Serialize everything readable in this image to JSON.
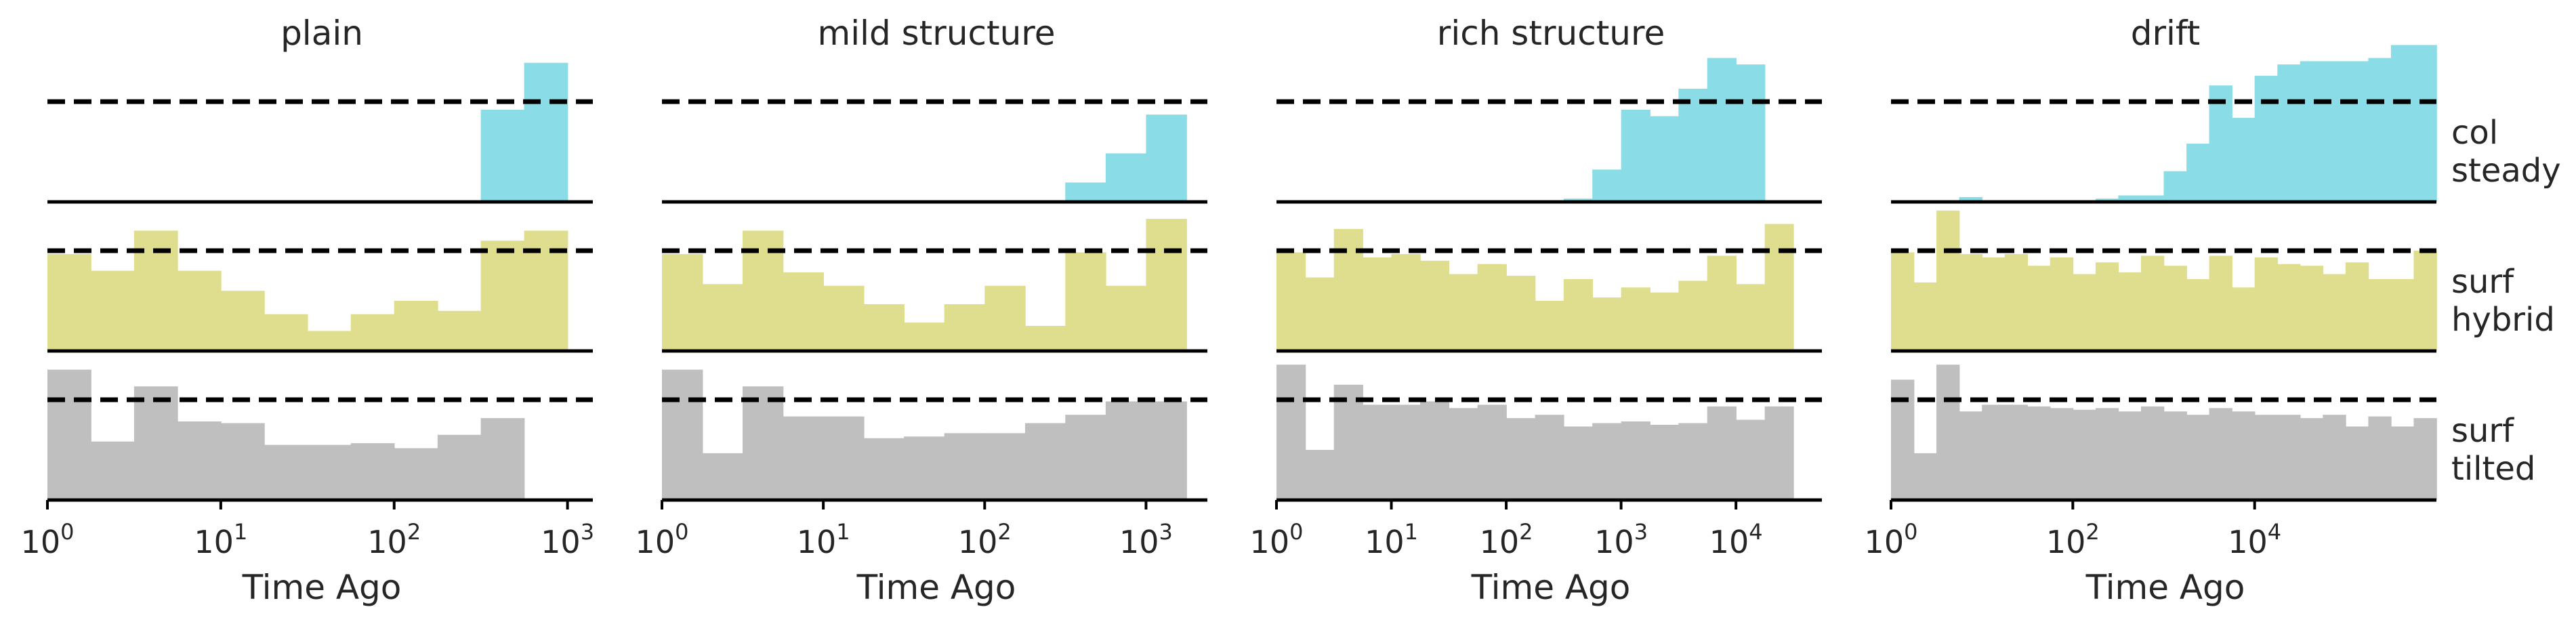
{
  "figure": {
    "columns": [
      "plain",
      "mild structure",
      "rich structure",
      "drift"
    ],
    "rows": [
      {
        "line1": "col",
        "line2": "steady"
      },
      {
        "line1": "surf",
        "line2": "hybrid"
      },
      {
        "line1": "surf",
        "line2": "tilted"
      }
    ],
    "xlabel": "Time Ago",
    "colors": {
      "col": "#8adde6",
      "hybrid": "#dede8e",
      "tilted": "#bfbfbf",
      "dashed": "#000000",
      "axis": "#000000"
    }
  },
  "chart_data": [
    {
      "type": "bar",
      "panel": "plain",
      "row": "col steady",
      "title": "plain",
      "xlabel": "Time Ago",
      "xscale": "log",
      "xlim": [
        1,
        1400
      ],
      "xticks": [
        {
          "base": "10",
          "exp": "0"
        },
        {
          "base": "10",
          "exp": "1"
        },
        {
          "base": "10",
          "exp": "2"
        },
        {
          "base": "10",
          "exp": "3"
        }
      ],
      "bins": [
        [
          316,
          562,
          0.57
        ],
        [
          562,
          1000,
          0.86
        ]
      ],
      "reference_line": 0.62
    },
    {
      "type": "bar",
      "panel": "plain",
      "row": "surf hybrid",
      "xscale": "log",
      "bins": [
        [
          1,
          1.78,
          0.58
        ],
        [
          1.78,
          3.16,
          0.48
        ],
        [
          3.16,
          5.62,
          0.72
        ],
        [
          5.62,
          10,
          0.48
        ],
        [
          10,
          17.8,
          0.36
        ],
        [
          17.8,
          31.6,
          0.22
        ],
        [
          31.6,
          56.2,
          0.12
        ],
        [
          56.2,
          100,
          0.22
        ],
        [
          100,
          178,
          0.3
        ],
        [
          178,
          316,
          0.24
        ],
        [
          316,
          562,
          0.66
        ],
        [
          562,
          1000,
          0.72
        ]
      ],
      "reference_line": 0.6
    },
    {
      "type": "bar",
      "panel": "plain",
      "row": "surf tilted",
      "xscale": "log",
      "bins": [
        [
          1,
          1.78,
          0.78
        ],
        [
          1.78,
          3.16,
          0.35
        ],
        [
          3.16,
          5.62,
          0.68
        ],
        [
          5.62,
          10,
          0.47
        ],
        [
          10,
          17.8,
          0.46
        ],
        [
          17.8,
          31.6,
          0.33
        ],
        [
          31.6,
          56.2,
          0.33
        ],
        [
          56.2,
          100,
          0.34
        ],
        [
          100,
          178,
          0.31
        ],
        [
          178,
          316,
          0.39
        ],
        [
          316,
          562,
          0.49
        ]
      ],
      "reference_line": 0.6
    },
    {
      "type": "bar",
      "panel": "mild structure",
      "row": "col steady",
      "title": "mild structure",
      "xlabel": "Time Ago",
      "xscale": "log",
      "xlim": [
        1,
        2400
      ],
      "xticks": [
        {
          "base": "10",
          "exp": "0"
        },
        {
          "base": "10",
          "exp": "1"
        },
        {
          "base": "10",
          "exp": "2"
        },
        {
          "base": "10",
          "exp": "3"
        }
      ],
      "bins": [
        [
          316,
          562,
          0.12
        ],
        [
          562,
          1000,
          0.3
        ],
        [
          1000,
          1780,
          0.54
        ]
      ],
      "reference_line": 0.62
    },
    {
      "type": "bar",
      "panel": "mild structure",
      "row": "surf hybrid",
      "xscale": "log",
      "bins": [
        [
          1,
          1.78,
          0.58
        ],
        [
          1.78,
          3.16,
          0.4
        ],
        [
          3.16,
          5.62,
          0.72
        ],
        [
          5.62,
          10,
          0.47
        ],
        [
          10,
          17.8,
          0.39
        ],
        [
          17.8,
          31.6,
          0.28
        ],
        [
          31.6,
          56.2,
          0.17
        ],
        [
          56.2,
          100,
          0.28
        ],
        [
          100,
          178,
          0.39
        ],
        [
          178,
          316,
          0.15
        ],
        [
          316,
          562,
          0.59
        ],
        [
          562,
          1000,
          0.39
        ],
        [
          1000,
          1780,
          0.79
        ]
      ],
      "reference_line": 0.6
    },
    {
      "type": "bar",
      "panel": "mild structure",
      "row": "surf tilted",
      "xscale": "log",
      "bins": [
        [
          1,
          1.78,
          0.78
        ],
        [
          1.78,
          3.16,
          0.28
        ],
        [
          3.16,
          5.62,
          0.68
        ],
        [
          5.62,
          10,
          0.5
        ],
        [
          10,
          17.8,
          0.5
        ],
        [
          17.8,
          31.6,
          0.37
        ],
        [
          31.6,
          56.2,
          0.38
        ],
        [
          56.2,
          100,
          0.4
        ],
        [
          100,
          178,
          0.4
        ],
        [
          178,
          316,
          0.46
        ],
        [
          316,
          562,
          0.51
        ],
        [
          562,
          1000,
          0.59
        ],
        [
          1000,
          1780,
          0.59
        ]
      ],
      "reference_line": 0.6
    },
    {
      "type": "bar",
      "panel": "rich structure",
      "row": "col steady",
      "title": "rich structure",
      "xlabel": "Time Ago",
      "xscale": "log",
      "xlim": [
        1,
        56000
      ],
      "xticks": [
        {
          "base": "10",
          "exp": "0"
        },
        {
          "base": "10",
          "exp": "1"
        },
        {
          "base": "10",
          "exp": "2"
        },
        {
          "base": "10",
          "exp": "3"
        },
        {
          "base": "10",
          "exp": "4"
        }
      ],
      "bins": [
        [
          316,
          562,
          0.02
        ],
        [
          562,
          1000,
          0.2
        ],
        [
          1000,
          1780,
          0.57
        ],
        [
          1780,
          3160,
          0.53
        ],
        [
          3160,
          5620,
          0.7
        ],
        [
          5620,
          10000,
          0.89
        ],
        [
          10000,
          17800,
          0.85
        ]
      ],
      "reference_line": 0.62
    },
    {
      "type": "bar",
      "panel": "rich structure",
      "row": "surf hybrid",
      "xscale": "log",
      "bins": [
        [
          1,
          1.78,
          0.59
        ],
        [
          1.78,
          3.16,
          0.44
        ],
        [
          3.16,
          5.62,
          0.73
        ],
        [
          5.62,
          10,
          0.56
        ],
        [
          10,
          17.8,
          0.58
        ],
        [
          17.8,
          31.6,
          0.54
        ],
        [
          31.6,
          56.2,
          0.46
        ],
        [
          56.2,
          100,
          0.52
        ],
        [
          100,
          178,
          0.45
        ],
        [
          178,
          316,
          0.3
        ],
        [
          316,
          562,
          0.43
        ],
        [
          562,
          1000,
          0.32
        ],
        [
          1000,
          1780,
          0.38
        ],
        [
          1780,
          3160,
          0.35
        ],
        [
          3160,
          5620,
          0.42
        ],
        [
          5620,
          10000,
          0.57
        ],
        [
          10000,
          17800,
          0.4
        ],
        [
          17800,
          31600,
          0.76
        ]
      ],
      "reference_line": 0.6
    },
    {
      "type": "bar",
      "panel": "rich structure",
      "row": "surf tilted",
      "xscale": "log",
      "bins": [
        [
          1,
          1.78,
          0.81
        ],
        [
          1.78,
          3.16,
          0.3
        ],
        [
          3.16,
          5.62,
          0.69
        ],
        [
          5.62,
          10,
          0.57
        ],
        [
          10,
          17.8,
          0.57
        ],
        [
          17.8,
          31.6,
          0.59
        ],
        [
          31.6,
          56.2,
          0.55
        ],
        [
          56.2,
          100,
          0.57
        ],
        [
          100,
          178,
          0.49
        ],
        [
          178,
          316,
          0.51
        ],
        [
          316,
          562,
          0.44
        ],
        [
          562,
          1000,
          0.46
        ],
        [
          1000,
          1780,
          0.47
        ],
        [
          1780,
          3160,
          0.45
        ],
        [
          3160,
          5620,
          0.46
        ],
        [
          5620,
          10000,
          0.56
        ],
        [
          10000,
          17800,
          0.48
        ],
        [
          17800,
          31600,
          0.56
        ]
      ],
      "reference_line": 0.6
    },
    {
      "type": "bar",
      "panel": "drift",
      "row": "col steady",
      "title": "drift",
      "xlabel": "Time Ago",
      "xscale": "log",
      "xlim": [
        1,
        1000000
      ],
      "xticks": [
        {
          "base": "10",
          "exp": "0"
        },
        {
          "base": "10",
          "exp": "2"
        },
        {
          "base": "10",
          "exp": "4"
        }
      ],
      "bins": [
        [
          1.78,
          3.16,
          0.01
        ],
        [
          5.62,
          10,
          0.03
        ],
        [
          10,
          17.8,
          0.01
        ],
        [
          178,
          316,
          0.02
        ],
        [
          316,
          562,
          0.04
        ],
        [
          562,
          1000,
          0.04
        ],
        [
          1000,
          1780,
          0.19
        ],
        [
          1780,
          3160,
          0.36
        ],
        [
          3160,
          5620,
          0.72
        ],
        [
          5620,
          10000,
          0.52
        ],
        [
          10000,
          17800,
          0.78
        ],
        [
          17800,
          31600,
          0.85
        ],
        [
          31600,
          56200,
          0.87
        ],
        [
          56200,
          100000,
          0.87
        ],
        [
          100000,
          178000,
          0.87
        ],
        [
          178000,
          316000,
          0.89
        ],
        [
          316000,
          562000,
          0.97
        ],
        [
          562000,
          1000000,
          0.97
        ]
      ],
      "reference_line": 0.62
    },
    {
      "type": "bar",
      "panel": "drift",
      "row": "surf hybrid",
      "xscale": "log",
      "bins": [
        [
          1,
          1.78,
          0.59
        ],
        [
          1.78,
          3.16,
          0.41
        ],
        [
          3.16,
          5.62,
          0.84
        ],
        [
          5.62,
          10,
          0.58
        ],
        [
          10,
          17.8,
          0.56
        ],
        [
          17.8,
          31.6,
          0.58
        ],
        [
          31.6,
          56.2,
          0.51
        ],
        [
          56.2,
          100,
          0.56
        ],
        [
          100,
          178,
          0.46
        ],
        [
          178,
          316,
          0.53
        ],
        [
          316,
          562,
          0.47
        ],
        [
          562,
          1000,
          0.57
        ],
        [
          1000,
          1780,
          0.51
        ],
        [
          1780,
          3160,
          0.43
        ],
        [
          3160,
          5620,
          0.57
        ],
        [
          5620,
          10000,
          0.38
        ],
        [
          10000,
          17800,
          0.56
        ],
        [
          17800,
          31600,
          0.52
        ],
        [
          31600,
          56200,
          0.51
        ],
        [
          56200,
          100000,
          0.46
        ],
        [
          100000,
          178000,
          0.53
        ],
        [
          178000,
          316000,
          0.43
        ],
        [
          316000,
          562000,
          0.43
        ],
        [
          562000,
          1000000,
          0.6
        ]
      ],
      "reference_line": 0.6
    },
    {
      "type": "bar",
      "panel": "drift",
      "row": "surf tilted",
      "xscale": "log",
      "bins": [
        [
          1,
          1.78,
          0.72
        ],
        [
          1.78,
          3.16,
          0.28
        ],
        [
          3.16,
          5.62,
          0.81
        ],
        [
          5.62,
          10,
          0.53
        ],
        [
          10,
          17.8,
          0.57
        ],
        [
          17.8,
          31.6,
          0.57
        ],
        [
          31.6,
          56.2,
          0.56
        ],
        [
          56.2,
          100,
          0.55
        ],
        [
          100,
          178,
          0.54
        ],
        [
          178,
          316,
          0.55
        ],
        [
          316,
          562,
          0.53
        ],
        [
          562,
          1000,
          0.56
        ],
        [
          1000,
          1780,
          0.53
        ],
        [
          1780,
          3160,
          0.51
        ],
        [
          3160,
          5620,
          0.55
        ],
        [
          5620,
          10000,
          0.53
        ],
        [
          10000,
          17800,
          0.51
        ],
        [
          17800,
          31600,
          0.51
        ],
        [
          31600,
          56200,
          0.49
        ],
        [
          56200,
          100000,
          0.51
        ],
        [
          100000,
          178000,
          0.44
        ],
        [
          178000,
          316000,
          0.5
        ],
        [
          316000,
          562000,
          0.44
        ],
        [
          562000,
          1000000,
          0.49
        ]
      ],
      "reference_line": 0.6
    }
  ]
}
